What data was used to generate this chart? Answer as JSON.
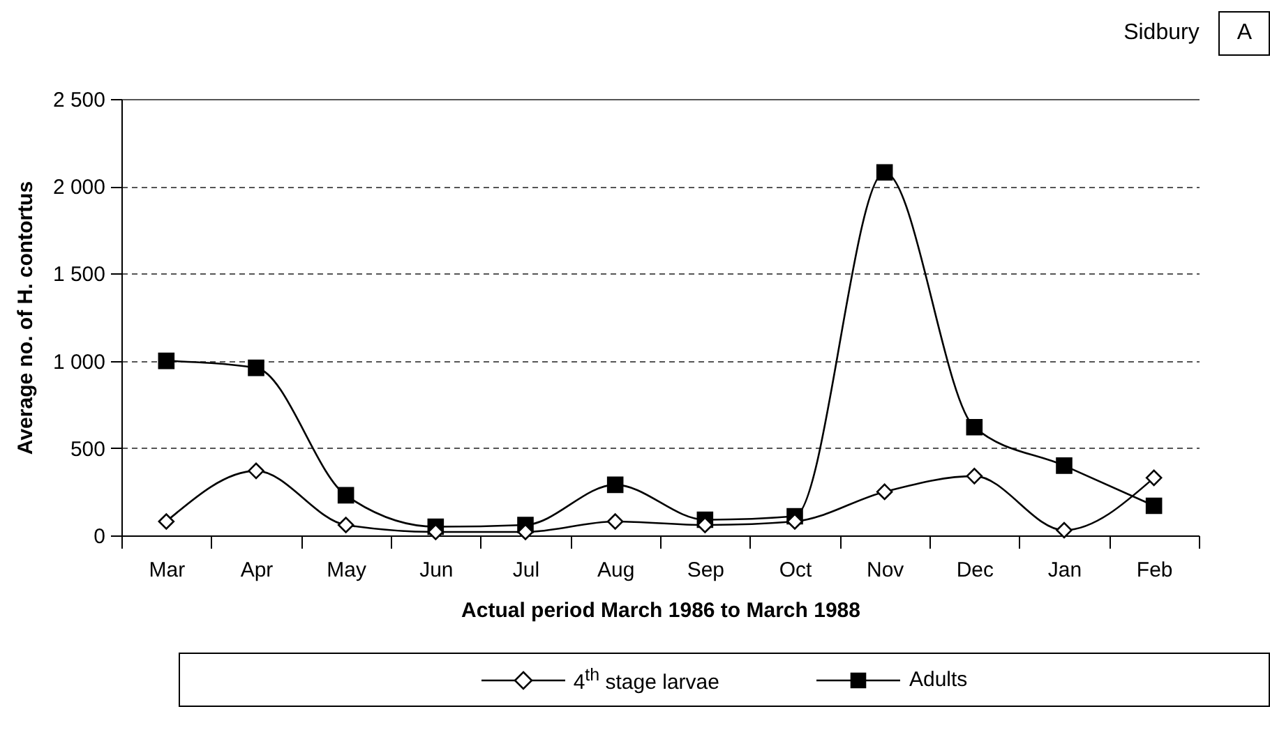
{
  "chart_data": {
    "type": "line",
    "categories": [
      "Mar",
      "Apr",
      "May",
      "Jun",
      "Jul",
      "Aug",
      "Sep",
      "Oct",
      "Nov",
      "Dec",
      "Jan",
      "Feb"
    ],
    "series": [
      {
        "name": "4$^{th}$ stage larvae",
        "color": "#000000",
        "marker": "diamond",
        "values": [
          80,
          370,
          60,
          20,
          20,
          80,
          60,
          80,
          250,
          340,
          30,
          330
        ]
      },
      {
        "name": "Adults",
        "color": "#000000",
        "marker": "square",
        "values": [
          1000,
          960,
          230,
          50,
          60,
          290,
          90,
          110,
          2080,
          620,
          400,
          170
        ]
      }
    ],
    "xlabel": "Actual period March 1986 to March 1988",
    "ylabel": "Average no. of H. contortus",
    "ylim": [
      0,
      2500
    ],
    "yticks": [
      0,
      500,
      {
        "value": 1000,
        "label": "1 000"
      },
      {
        "value": 1500,
        "label": "1 500"
      },
      {
        "value": 2000,
        "label": "2 000"
      },
      {
        "value": 2500,
        "label": "2 500"
      }
    ],
    "annotations": [
      "Sidbury",
      "A"
    ],
    "grid": "y",
    "legend": "bottom",
    "line_style": "solid"
  }
}
